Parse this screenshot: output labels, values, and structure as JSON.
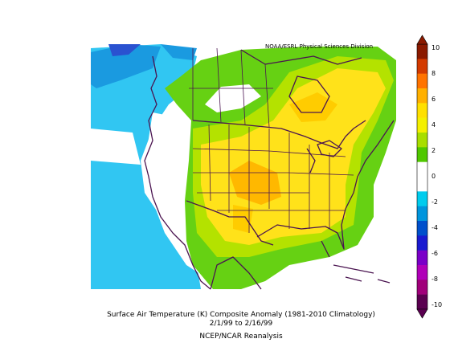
{
  "credit": "NOAA/ESRL Physical Sciences Division",
  "caption": {
    "title": "Surface Air Temperature (K) Composite Anomaly (1981-2010 Climatology)",
    "dates": "2/1/99  to 2/16/99",
    "source": "NCEP/NCAR Reanalysis"
  },
  "colorbar": {
    "tick_labels": [
      "10",
      "8",
      "6",
      "4",
      "2",
      "0",
      "-2",
      "-4",
      "-6",
      "-8",
      "-10"
    ],
    "colors": [
      "#8b1a00",
      "#d33a00",
      "#ff7300",
      "#ffb000",
      "#ffe000",
      "#f4f000",
      "#a8de00",
      "#50c800",
      "#ffffff",
      "#ffffff",
      "#00ccee",
      "#0095dd",
      "#0050cc",
      "#1a1ad0",
      "#7a00c8",
      "#b000b8",
      "#a0007a",
      "#5a0050"
    ]
  }
}
